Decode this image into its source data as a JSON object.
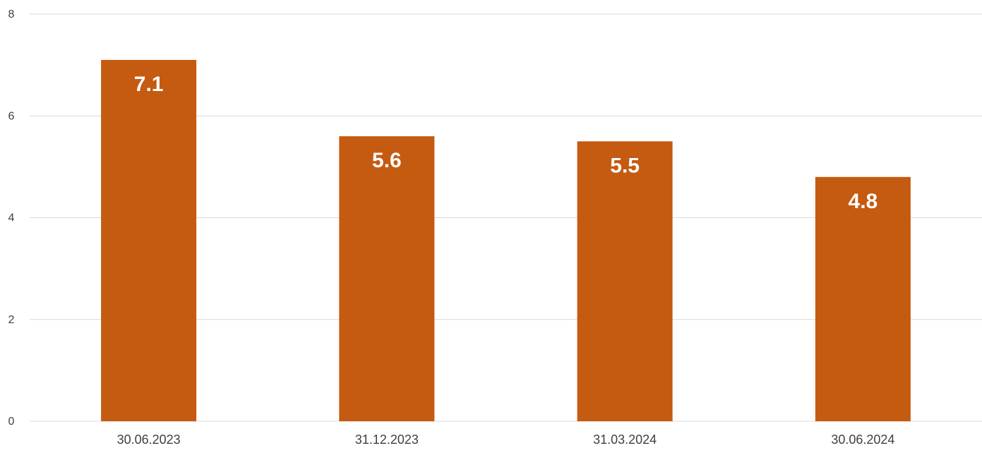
{
  "chart_data": {
    "type": "bar",
    "categories": [
      "30.06.2023",
      "31.12.2023",
      "31.03.2024",
      "30.06.2024"
    ],
    "values": [
      7.1,
      5.6,
      5.5,
      4.8
    ],
    "data_labels": [
      "7.1",
      "5.6",
      "5.5",
      "4.8"
    ],
    "y_ticks": [
      0,
      2,
      4,
      6,
      8
    ],
    "ylim": [
      0,
      8
    ],
    "grid": true,
    "legend": "none",
    "bar_color": "#C55A11",
    "data_label_color": "#FFFFFF"
  }
}
